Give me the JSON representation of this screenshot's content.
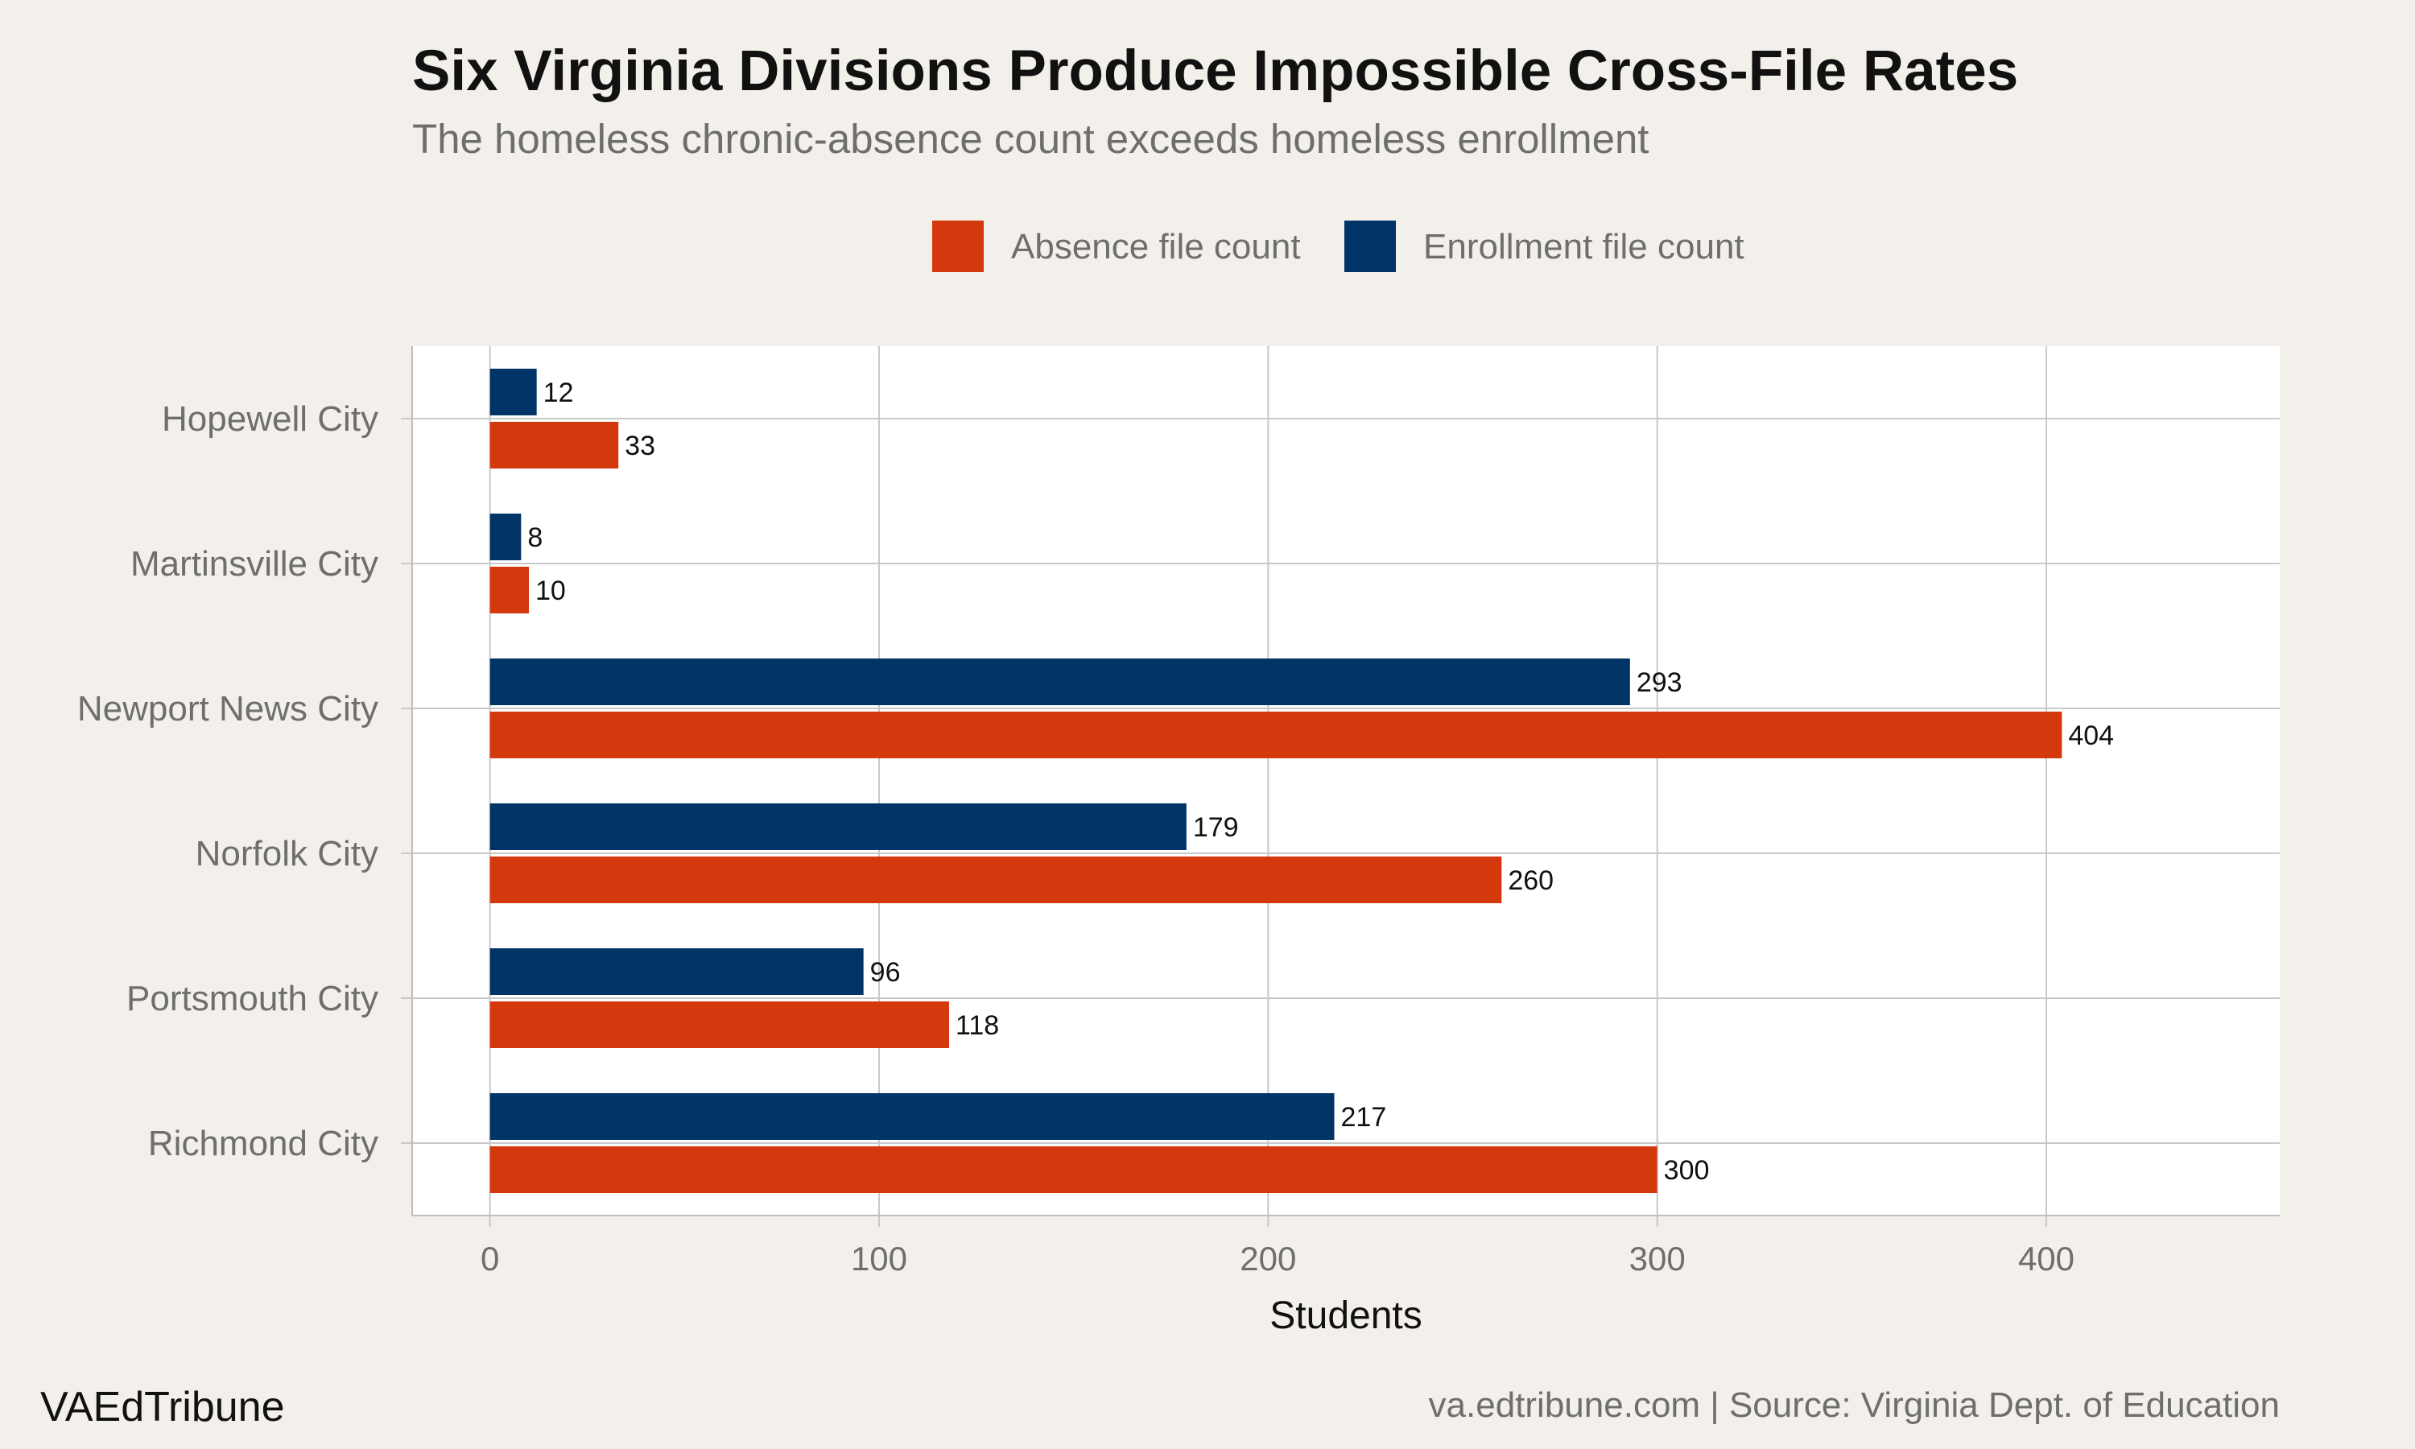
{
  "chart_data": {
    "type": "bar",
    "orientation": "horizontal",
    "title": "Six Virginia Divisions Produce Impossible Cross-File Rates",
    "subtitle": "The homeless chronic-absence count exceeds homeless enrollment",
    "xlabel": "Students",
    "ylabel": "",
    "xlim": [
      -20,
      460
    ],
    "x_ticks": [
      0,
      100,
      200,
      300,
      400
    ],
    "grid": true,
    "legend_position": "top",
    "categories": [
      "Hopewell City",
      "Martinsville City",
      "Newport News City",
      "Norfolk City",
      "Portsmouth City",
      "Richmond City"
    ],
    "series": [
      {
        "name": "Absence file count",
        "color": "#d4380d",
        "values": [
          33,
          10,
          404,
          260,
          118,
          300
        ]
      },
      {
        "name": "Enrollment file count",
        "color": "#003366",
        "values": [
          12,
          8,
          293,
          179,
          96,
          217
        ]
      }
    ]
  },
  "footer": {
    "brand": "VAEdTribune",
    "source": "va.edtribune.com | Source: Virginia Dept. of Education"
  },
  "colors": {
    "background": "#f3f0eb",
    "panel": "#ffffff",
    "grid": "#c8c8c8",
    "absence": "#d4380d",
    "enrollment": "#003366"
  }
}
